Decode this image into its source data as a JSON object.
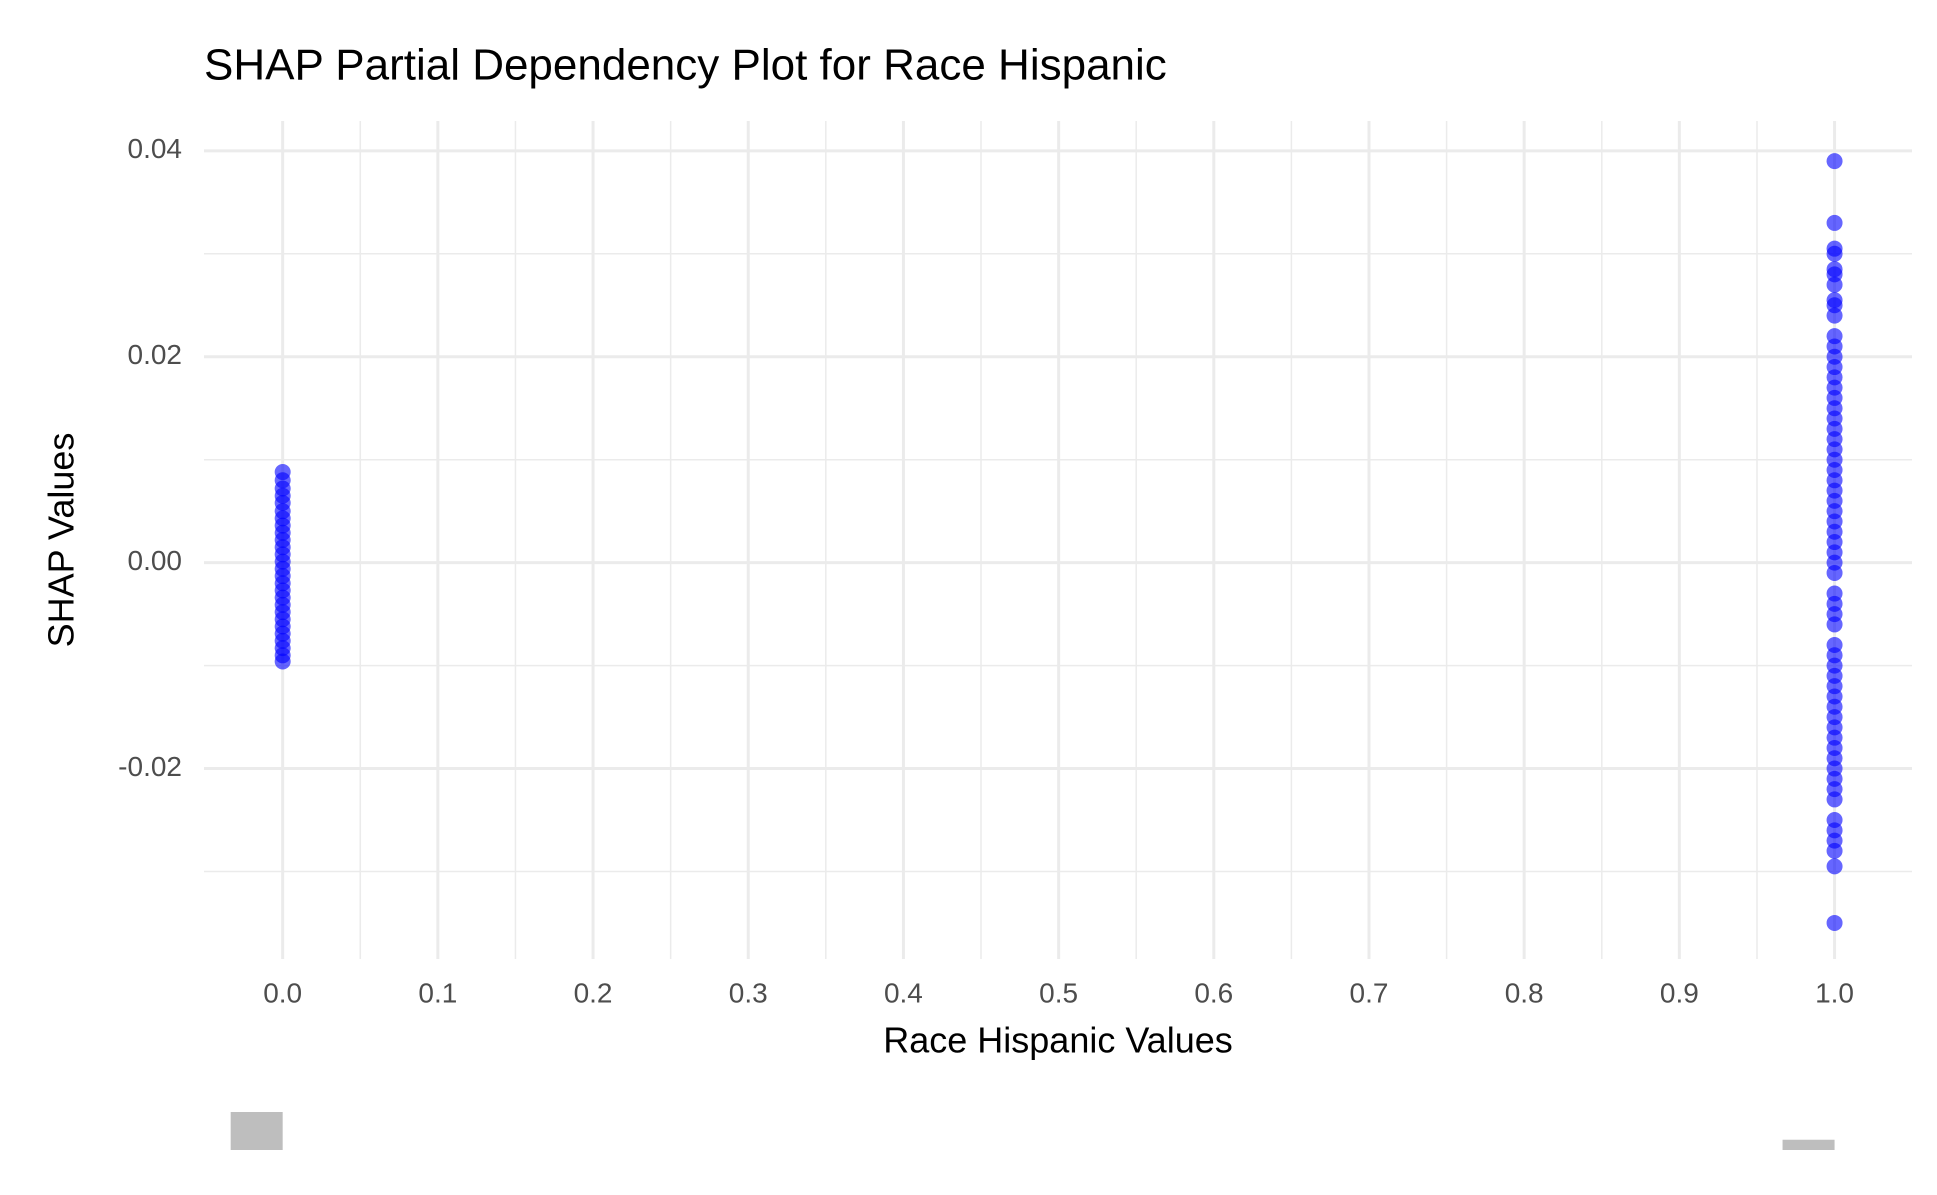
{
  "chart_data": [
    {
      "type": "scatter",
      "title": "SHAP Partial Dependency Plot for Race Hispanic",
      "x_label": "Race Hispanic Values",
      "y_label": "SHAP Values",
      "color": "#0000ff",
      "grid": true,
      "xlim": [
        -0.0507,
        1.0499
      ],
      "ylim": [
        -0.0385,
        0.0429
      ],
      "xticks": [
        {
          "value": 0,
          "label": "0.0"
        },
        0.1,
        0.2,
        0.3,
        0.4,
        0.5,
        0.6,
        0.7,
        0.8,
        0.9,
        {
          "value": 1,
          "label": "1.0"
        }
      ],
      "xminor": [
        0.05,
        0.15,
        0.25,
        0.35,
        0.45,
        0.55,
        0.65,
        0.75,
        0.85,
        0.95
      ],
      "yticks": [
        -0.02,
        {
          "value": 0,
          "label": "0.00"
        },
        0.02,
        0.04
      ],
      "yminor": [
        -0.03,
        -0.01,
        0.01,
        0.03
      ],
      "x": [
        0,
        0,
        0,
        0,
        0,
        0,
        0,
        0,
        0,
        0,
        0,
        0,
        0,
        0,
        0,
        0,
        0,
        0,
        0,
        0,
        0,
        0,
        0,
        0,
        0,
        0,
        0,
        1,
        1,
        1,
        1,
        1,
        1,
        1,
        1,
        1,
        1,
        1,
        1,
        1,
        1,
        1,
        1,
        1,
        1,
        1,
        1,
        1,
        1,
        1,
        1,
        1,
        1,
        1,
        1,
        1,
        1,
        1,
        1,
        1,
        1,
        1,
        1,
        1,
        1,
        1,
        1,
        1,
        1,
        1,
        1,
        1,
        1,
        1,
        1,
        1,
        1,
        1,
        1,
        1,
        1,
        1,
        1,
        1,
        1,
        1,
        1
      ],
      "values": [
        0.0088,
        0.008,
        0.0072,
        0.0065,
        0.0058,
        0.005,
        0.0043,
        0.0036,
        0.0029,
        0.0022,
        0.0015,
        0.0008,
        0.0001,
        -0.0006,
        -0.0013,
        -0.002,
        -0.0027,
        -0.0034,
        -0.0041,
        -0.0048,
        -0.0055,
        -0.0062,
        -0.0069,
        -0.0076,
        -0.0083,
        -0.009,
        -0.0096,
        0.039,
        0.033,
        0.0305,
        0.03,
        0.0285,
        0.028,
        0.027,
        0.0255,
        0.025,
        0.024,
        0.022,
        0.021,
        0.02,
        0.019,
        0.018,
        0.017,
        0.016,
        0.015,
        0.014,
        0.013,
        0.012,
        0.011,
        0.01,
        0.009,
        0.008,
        0.007,
        0.006,
        0.005,
        0.004,
        0.003,
        0.002,
        0.001,
        0.0,
        -0.001,
        -0.003,
        -0.004,
        -0.005,
        -0.006,
        -0.008,
        -0.009,
        -0.01,
        -0.011,
        -0.012,
        -0.013,
        -0.014,
        -0.015,
        -0.016,
        -0.017,
        -0.018,
        -0.019,
        -0.02,
        -0.021,
        -0.022,
        -0.023,
        -0.025,
        -0.026,
        -0.027,
        -0.028,
        -0.0295,
        -0.035
      ]
    },
    {
      "type": "bar",
      "x": [
        0,
        1
      ],
      "values": [
        100,
        27
      ],
      "color": "#bebebe"
    }
  ]
}
